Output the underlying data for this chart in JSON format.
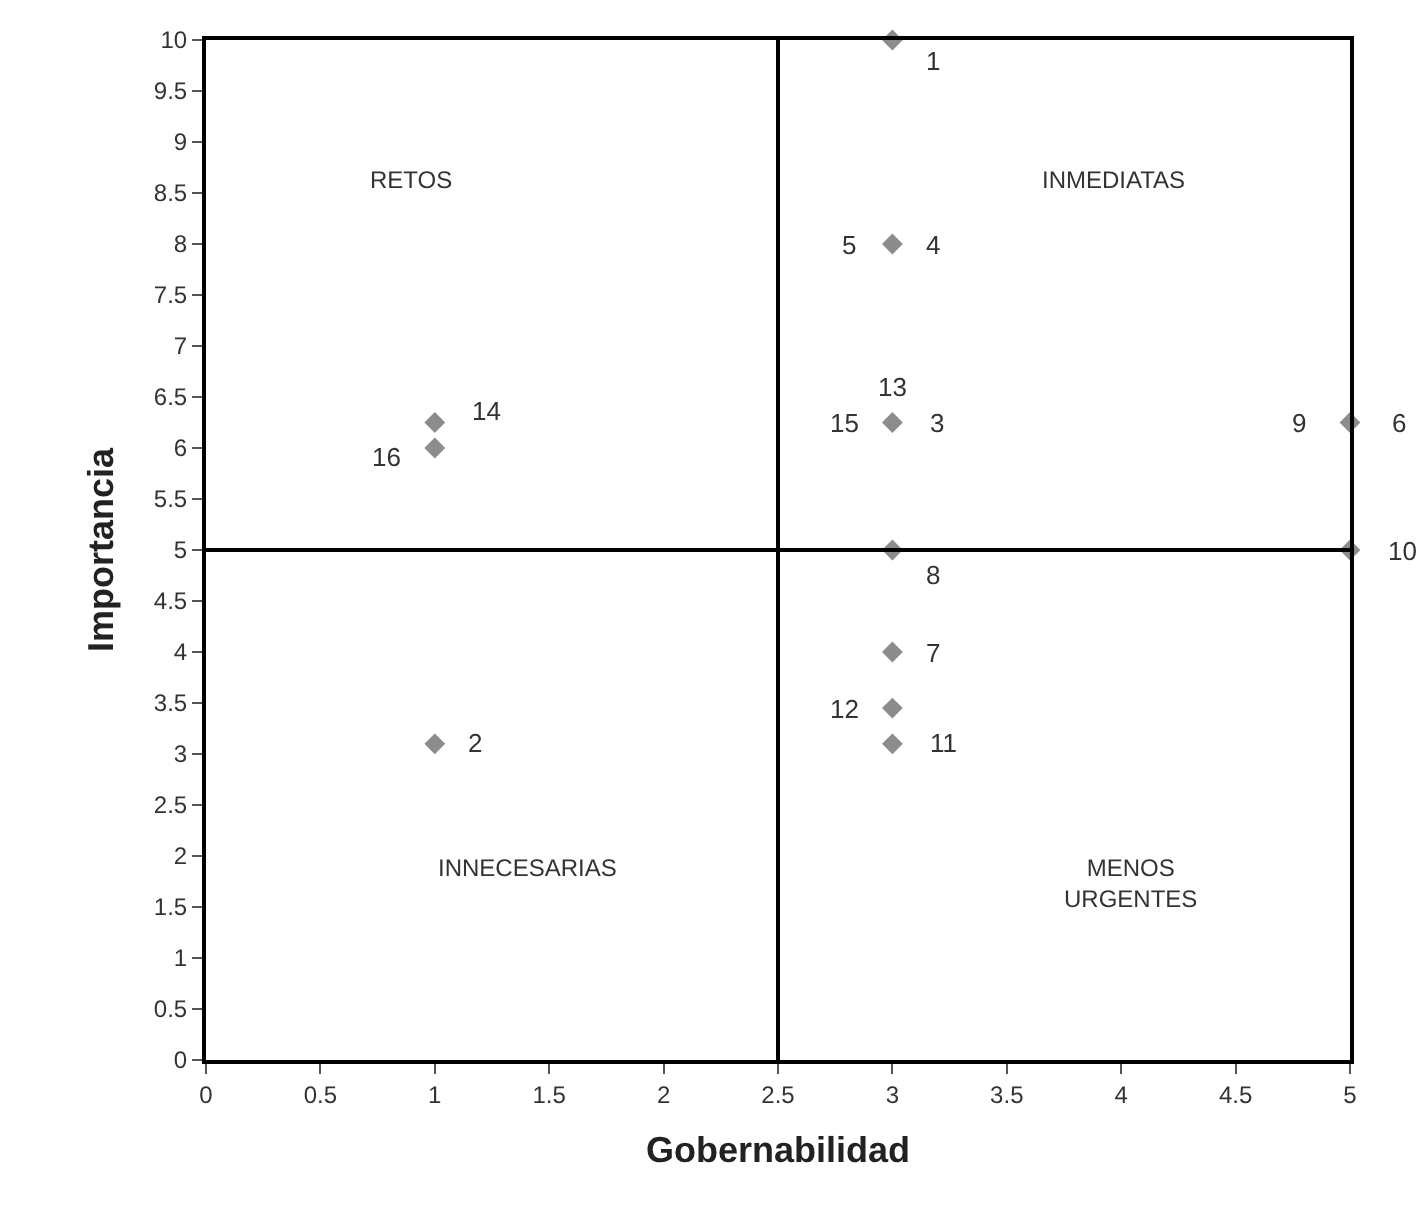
{
  "chart_data": {
    "type": "scatter",
    "xlabel": "Gobernabilidad",
    "ylabel": "Importancia",
    "x": [
      3,
      3,
      3,
      5,
      5,
      3,
      3,
      3,
      3,
      1,
      1,
      1
    ],
    "series": [
      {
        "color": "#8c8c8c",
        "values": [
          10,
          8,
          6.25,
          6.25,
          5,
          5,
          4,
          3.45,
          3.1,
          3.1,
          6.25,
          6
        ]
      }
    ],
    "marker": "diamond",
    "xlim": [
      0,
      5
    ],
    "xticks": [
      0,
      0.5,
      1,
      1.5,
      2,
      2.5,
      3,
      3.5,
      4,
      4.5,
      5
    ],
    "ylim": [
      0,
      10
    ],
    "yticks": [
      0,
      0.5,
      1,
      1.5,
      2,
      2.5,
      3,
      3.5,
      4,
      4.5,
      5,
      5.5,
      6,
      6.5,
      7,
      7.5,
      8,
      8.5,
      9,
      9.5,
      10
    ],
    "ref_lines": [
      {
        "axis": "x",
        "value": 2.5,
        "color": "#000000"
      },
      {
        "axis": "y",
        "value": 5,
        "color": "#000000"
      }
    ],
    "annotations": [
      {
        "text": "1",
        "x": 3,
        "y": 10
      },
      {
        "text": "2",
        "x": 1,
        "y": 3.1
      },
      {
        "text": "3",
        "x": 3,
        "y": 6.25
      },
      {
        "text": "4",
        "x": 3,
        "y": 8
      },
      {
        "text": "5",
        "x": 3,
        "y": 8
      },
      {
        "text": "6",
        "x": 5,
        "y": 6.25
      },
      {
        "text": "7",
        "x": 3,
        "y": 4
      },
      {
        "text": "8",
        "x": 3,
        "y": 5
      },
      {
        "text": "9",
        "x": 5,
        "y": 6.25
      },
      {
        "text": "10",
        "x": 5,
        "y": 5
      },
      {
        "text": "11",
        "x": 3,
        "y": 3.1
      },
      {
        "text": "12",
        "x": 3,
        "y": 3.45
      },
      {
        "text": "13",
        "x": 3,
        "y": 6.25
      },
      {
        "text": "14",
        "x": 1,
        "y": 6.25
      },
      {
        "text": "15",
        "x": 3,
        "y": 6.25
      },
      {
        "text": "16",
        "x": 1,
        "y": 6
      },
      "RETOS",
      "INMEDIATAS",
      "INNECESARIAS",
      "MENOS\nURGENTES"
    ]
  }
}
